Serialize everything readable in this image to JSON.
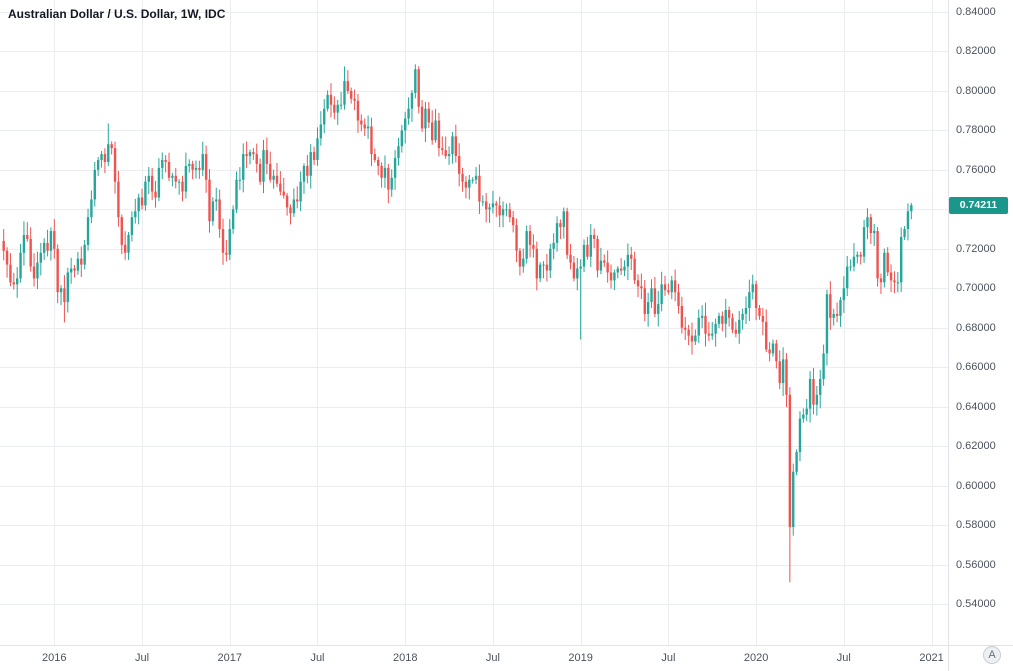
{
  "header": {
    "title": "Australian Dollar / U.S. Dollar, 1W, IDC"
  },
  "last_price": {
    "value": "0.74211",
    "numeric": 0.74211
  },
  "corner_badge": {
    "label": "A"
  },
  "colors": {
    "up": "#26a69a",
    "down": "#ef5350",
    "grid": "#ebedf0",
    "axis_text": "#4c525e",
    "title_text": "#131722",
    "price_label_bg": "#1a968a",
    "axis_border": "#e0e3eb"
  },
  "y_axis": {
    "labels": [
      "0.84000",
      "0.82000",
      "0.80000",
      "0.78000",
      "0.76000",
      "0.74000",
      "0.72000",
      "0.70000",
      "0.68000",
      "0.66000",
      "0.64000",
      "0.62000",
      "0.60000",
      "0.58000",
      "0.56000",
      "0.54000"
    ],
    "min": 0.54,
    "max": 0.84,
    "step": 0.02
  },
  "x_axis": {
    "ticks": [
      {
        "label": "2016",
        "week": 15
      },
      {
        "label": "Jul",
        "week": 41
      },
      {
        "label": "2017",
        "week": 67
      },
      {
        "label": "Jul",
        "week": 93
      },
      {
        "label": "2018",
        "week": 119
      },
      {
        "label": "Jul",
        "week": 145
      },
      {
        "label": "2019",
        "week": 171
      },
      {
        "label": "Jul",
        "week": 197
      },
      {
        "label": "2020",
        "week": 223
      },
      {
        "label": "Jul",
        "week": 249
      },
      {
        "label": "2021",
        "week": 275
      }
    ]
  },
  "chart_data": {
    "type": "candlestick",
    "title": "Australian Dollar / U.S. Dollar, 1W, IDC",
    "symbol": "AUD/USD",
    "interval": "1W",
    "data_source": "IDC",
    "start": "2015-09 (weekly bars)",
    "ylim": [
      0.54,
      0.84
    ],
    "grid": true,
    "x_span_weeks": 278,
    "closes": [
      0.719,
      0.712,
      0.703,
      0.702,
      0.705,
      0.718,
      0.727,
      0.725,
      0.711,
      0.705,
      0.713,
      0.718,
      0.723,
      0.719,
      0.729,
      0.72,
      0.698,
      0.7,
      0.693,
      0.708,
      0.71,
      0.709,
      0.715,
      0.712,
      0.722,
      0.736,
      0.745,
      0.76,
      0.765,
      0.768,
      0.764,
      0.773,
      0.771,
      0.754,
      0.736,
      0.722,
      0.718,
      0.727,
      0.736,
      0.739,
      0.746,
      0.742,
      0.754,
      0.757,
      0.749,
      0.746,
      0.761,
      0.765,
      0.764,
      0.756,
      0.757,
      0.754,
      0.754,
      0.749,
      0.762,
      0.763,
      0.76,
      0.761,
      0.76,
      0.768,
      0.755,
      0.734,
      0.744,
      0.745,
      0.73,
      0.718,
      0.717,
      0.73,
      0.74,
      0.755,
      0.755,
      0.768,
      0.767,
      0.769,
      0.768,
      0.763,
      0.754,
      0.77,
      0.763,
      0.755,
      0.757,
      0.753,
      0.749,
      0.747,
      0.741,
      0.738,
      0.745,
      0.744,
      0.754,
      0.762,
      0.757,
      0.769,
      0.765,
      0.776,
      0.783,
      0.791,
      0.798,
      0.793,
      0.789,
      0.793,
      0.793,
      0.805,
      0.8,
      0.796,
      0.795,
      0.785,
      0.783,
      0.781,
      0.782,
      0.768,
      0.765,
      0.762,
      0.756,
      0.761,
      0.75,
      0.756,
      0.766,
      0.772,
      0.78,
      0.786,
      0.791,
      0.799,
      0.811,
      0.792,
      0.781,
      0.791,
      0.784,
      0.775,
      0.785,
      0.771,
      0.77,
      0.767,
      0.768,
      0.777,
      0.767,
      0.758,
      0.754,
      0.751,
      0.755,
      0.755,
      0.757,
      0.744,
      0.744,
      0.74,
      0.741,
      0.743,
      0.742,
      0.737,
      0.74,
      0.74,
      0.736,
      0.732,
      0.719,
      0.711,
      0.715,
      0.729,
      0.722,
      0.72,
      0.705,
      0.712,
      0.712,
      0.709,
      0.72,
      0.723,
      0.733,
      0.731,
      0.739,
      0.717,
      0.713,
      0.705,
      0.71,
      0.711,
      0.722,
      0.716,
      0.727,
      0.725,
      0.709,
      0.714,
      0.713,
      0.708,
      0.704,
      0.708,
      0.71,
      0.709,
      0.711,
      0.717,
      0.715,
      0.704,
      0.701,
      0.7,
      0.687,
      0.693,
      0.7,
      0.687,
      0.692,
      0.702,
      0.699,
      0.698,
      0.704,
      0.698,
      0.691,
      0.68,
      0.679,
      0.676,
      0.673,
      0.676,
      0.685,
      0.686,
      0.677,
      0.676,
      0.677,
      0.682,
      0.686,
      0.682,
      0.689,
      0.685,
      0.679,
      0.677,
      0.684,
      0.687,
      0.69,
      0.698,
      0.702,
      0.69,
      0.686,
      0.683,
      0.669,
      0.667,
      0.672,
      0.663,
      0.652,
      0.664,
      0.646,
      0.579,
      0.607,
      0.617,
      0.634,
      0.636,
      0.639,
      0.654,
      0.641,
      0.646,
      0.654,
      0.667,
      0.697,
      0.685,
      0.687,
      0.686,
      0.694,
      0.7,
      0.711,
      0.711,
      0.716,
      0.717,
      0.716,
      0.731,
      0.736,
      0.728,
      0.729,
      0.705,
      0.703,
      0.718,
      0.708,
      0.704,
      0.703,
      0.703,
      0.726,
      0.73,
      0.739,
      0.74211
    ],
    "wick_overrides": {
      "high": {
        "31": 0.7835,
        "101": 0.8124,
        "122": 0.8135,
        "269": 0.7432
      },
      "low": {
        "18": 0.6827,
        "171": 0.674,
        "233": 0.551
      }
    },
    "notable_points": {
      "jan2018_high": 0.8135,
      "jan2019_flash_crash_low": 0.674,
      "mar2020_covid_low": 0.551,
      "last_close": 0.74211
    }
  }
}
